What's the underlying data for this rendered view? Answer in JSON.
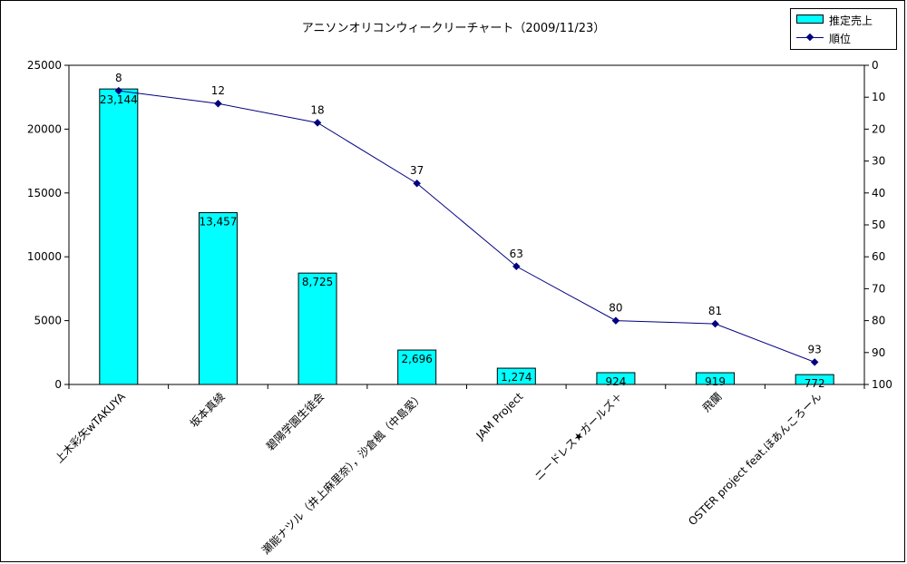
{
  "chart_data": {
    "type": "bar",
    "title": "アニソンオリコンウィークリーチャート（2009/11/23）",
    "categories": [
      "上木彩矢wTAKUYA",
      "坂本真綾",
      "碧陽学園生徒会",
      "瀬能ナツル（井上麻里奈），沙倉楓（中島愛）",
      "JAM Project",
      "ニードレス★ガールズ＋",
      "飛蘭",
      "OSTER project feat.ほあんころーん"
    ],
    "series": [
      {
        "name": "推定売上",
        "type": "bar",
        "axis": "left",
        "color": "#00FFFF",
        "values": [
          23144,
          13457,
          8725,
          2696,
          1274,
          924,
          919,
          772
        ],
        "labels": [
          "23,144",
          "13,457",
          "8,725",
          "2,696",
          "1,274",
          "924",
          "919",
          "772"
        ]
      },
      {
        "name": "順位",
        "type": "line",
        "axis": "right",
        "color": "#000080",
        "values": [
          8,
          12,
          18,
          37,
          63,
          80,
          81,
          93
        ],
        "labels": [
          "8",
          "12",
          "18",
          "37",
          "63",
          "80",
          "81",
          "93"
        ]
      }
    ],
    "y_left": {
      "ylim": [
        0,
        25000
      ],
      "ticks": [
        "0",
        "5000",
        "10000",
        "15000",
        "20000",
        "25000"
      ]
    },
    "y_right": {
      "ylim": [
        0,
        100
      ],
      "reversed": true,
      "ticks": [
        "0",
        "10",
        "20",
        "30",
        "40",
        "50",
        "60",
        "70",
        "80",
        "90",
        "100"
      ]
    },
    "grid": false,
    "legend": {
      "position": "top-right"
    }
  }
}
